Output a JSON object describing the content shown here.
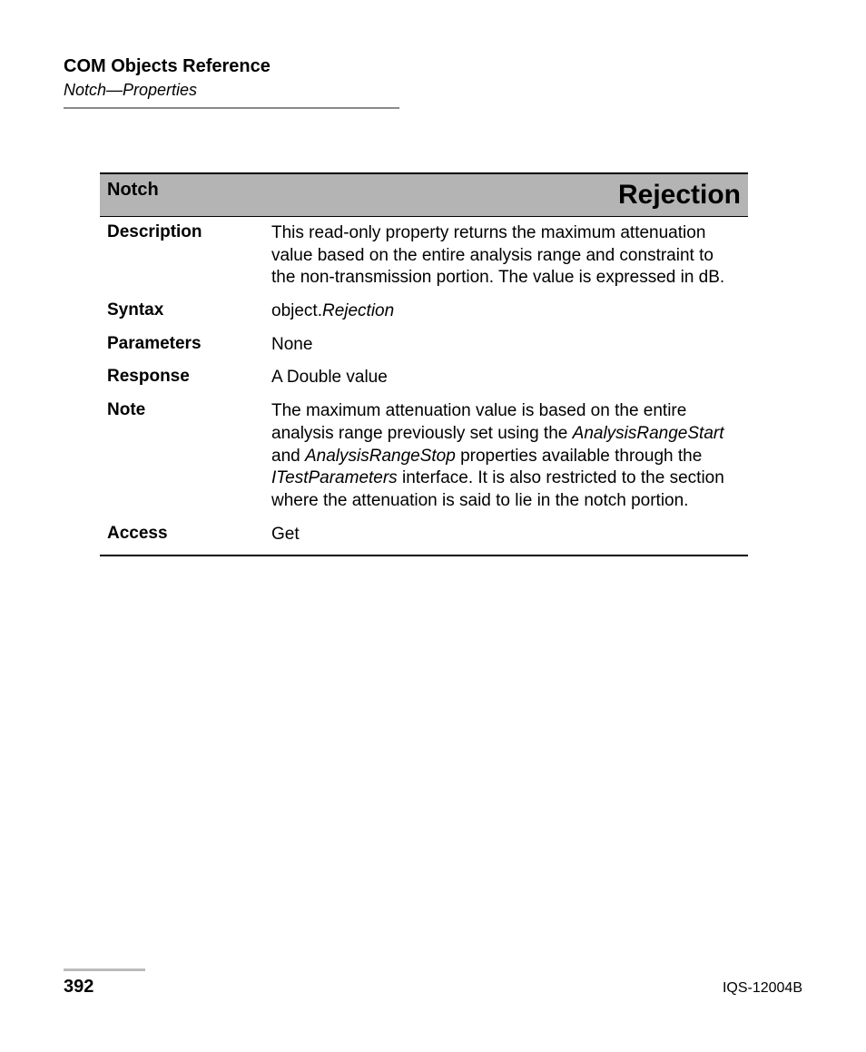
{
  "header": {
    "title": "COM Objects Reference",
    "subtitle": "Notch—Properties"
  },
  "table": {
    "head_left": "Notch",
    "head_right": "Rejection",
    "rows": {
      "description": {
        "label": "Description",
        "text": "This read-only property returns the maximum attenuation value based on the entire analysis range and constraint to the non-transmission portion. The value is expressed in dB."
      },
      "syntax": {
        "label": "Syntax",
        "prefix": "object.",
        "italic": "Rejection"
      },
      "parameters": {
        "label": "Parameters",
        "text": "None"
      },
      "response": {
        "label": "Response",
        "text": "A Double value"
      },
      "note": {
        "label": "Note",
        "seg1": "The maximum attenuation value is based on the entire analysis range previously set using the ",
        "italic1": "AnalysisRangeStart",
        "seg2": " and ",
        "italic2": "AnalysisRangeStop",
        "seg3": " properties available through the ",
        "italic3": "ITestParameters",
        "seg4": " interface. It is also restricted to the section where the attenuation is said to lie in the notch portion."
      },
      "access": {
        "label": "Access",
        "text": "Get"
      }
    }
  },
  "footer": {
    "page_number": "392",
    "doc_id": "IQS-12004B"
  },
  "colors": {
    "header_rule": "#8a8a8a",
    "table_head_bg": "#b4b4b4",
    "footer_rule": "#bcbcbc",
    "text": "#000000",
    "background": "#ffffff"
  }
}
